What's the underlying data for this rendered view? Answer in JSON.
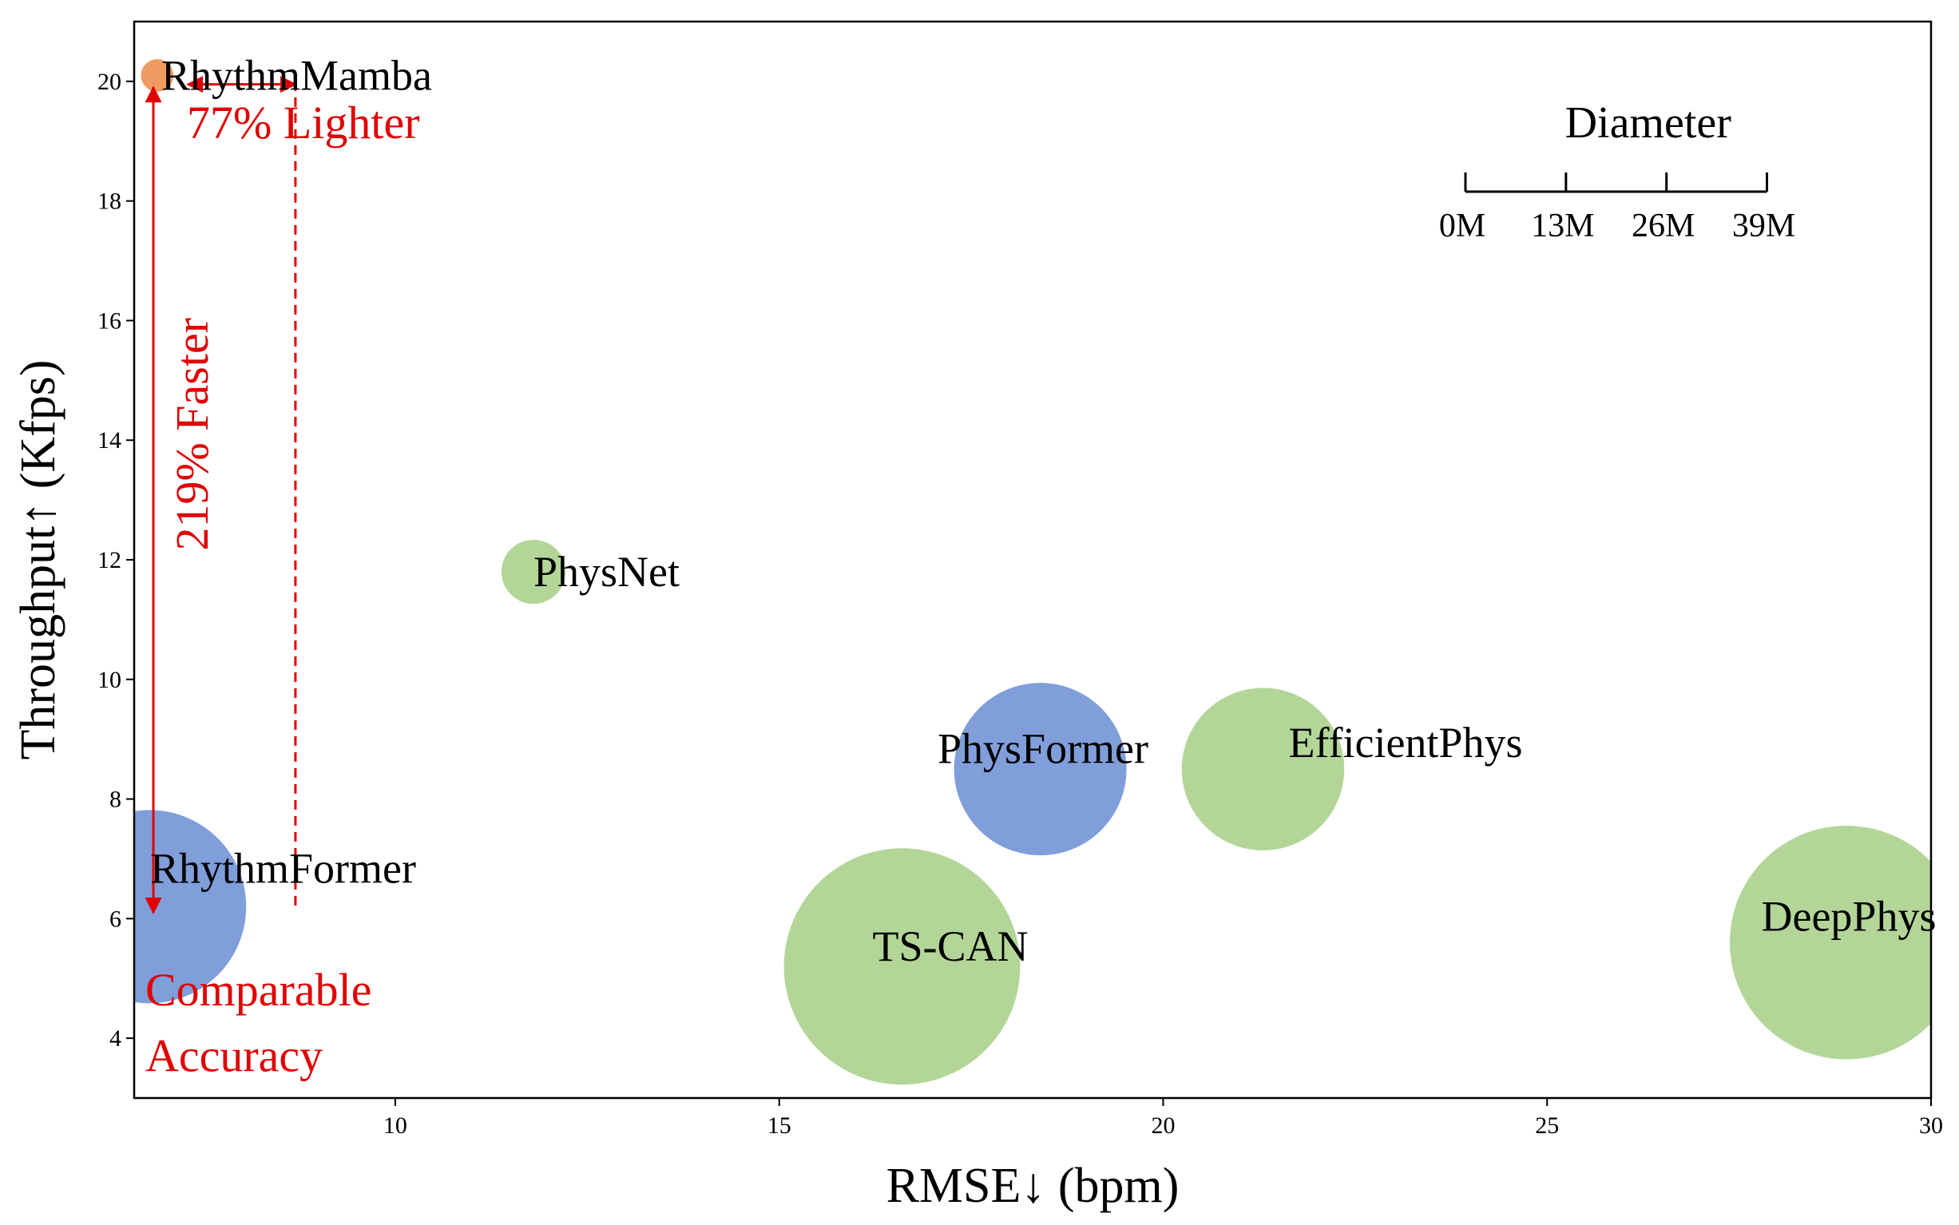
{
  "chart_data": {
    "type": "scatter",
    "title": "",
    "xlabel": "RMSE↓ (bpm)",
    "ylabel": "Throughput↑ (Kfps)",
    "xlim": [
      6.6,
      30
    ],
    "ylim": [
      3,
      21
    ],
    "x_ticks": [
      10,
      15,
      20,
      25,
      30
    ],
    "y_ticks": [
      4,
      6,
      8,
      10,
      12,
      14,
      16,
      18,
      20
    ],
    "grid": false,
    "size_legend": {
      "title": "Diameter",
      "ticks": [
        "0M",
        "13M",
        "26M",
        "39M"
      ],
      "tick_values": [
        0,
        13,
        26,
        39
      ],
      "placement": "top-right"
    },
    "series": [
      {
        "label": "RhythmMamba",
        "x": 6.9,
        "y": 20.1,
        "params_m": 3.7,
        "color": "#ed8a46",
        "label_offset": "right"
      },
      {
        "label": "PhysNet",
        "x": 11.8,
        "y": 11.8,
        "params_m": 7.3,
        "color": "#a6cf86",
        "label_offset": "right"
      },
      {
        "label": "RhythmFormer",
        "x": 6.8,
        "y": 6.2,
        "params_m": 22.0,
        "color": "#6a8dd3",
        "label_offset": "right"
      },
      {
        "label": "TS-CAN",
        "x": 16.6,
        "y": 5.2,
        "params_m": 26.9,
        "color": "#a6cf86",
        "label_offset": "center"
      },
      {
        "label": "EfficientPhys",
        "x": 21.3,
        "y": 8.5,
        "params_m": 18.5,
        "color": "#a6cf86",
        "label_offset": "center"
      },
      {
        "label": "PhysFormer",
        "x": 18.4,
        "y": 8.5,
        "params_m": 19.9,
        "color": "#6a8dd3",
        "label_offset": "center"
      },
      {
        "label": "DeepPhys",
        "x": 28.9,
        "y": 5.6,
        "params_m": 26.6,
        "color": "#a6cf86",
        "label_offset": "center"
      }
    ],
    "annotations": {
      "lighter": "77% Lighter",
      "faster": "219% Faster",
      "accuracy_line1": "Comparable",
      "accuracy_line2": "Accuracy",
      "color": "#e00000"
    }
  }
}
